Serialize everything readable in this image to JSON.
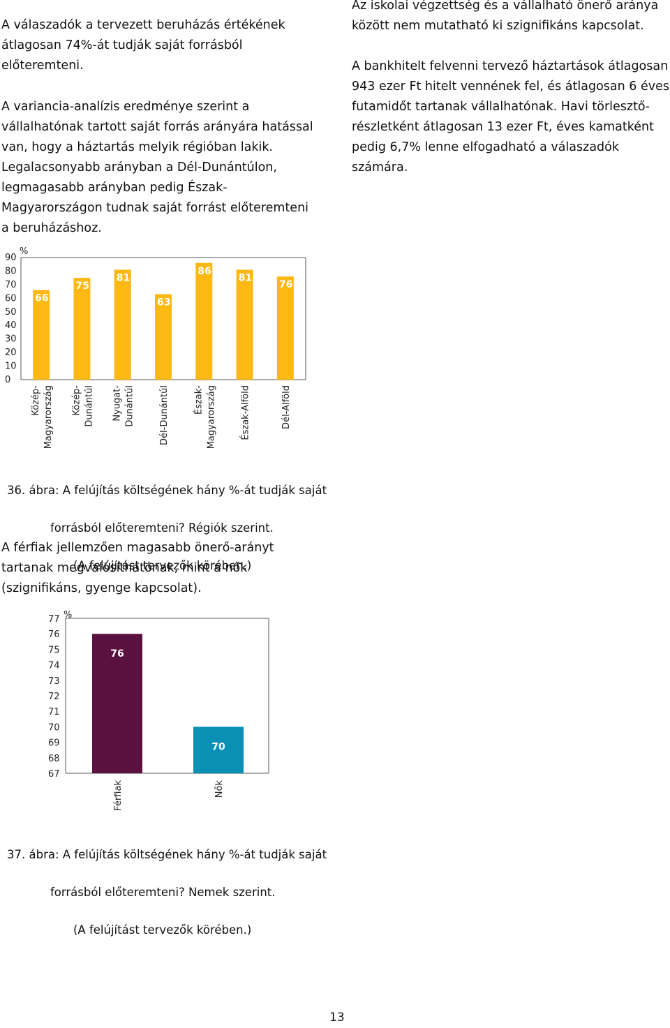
{
  "left_column": {
    "p1": "A válaszadók a tervezett beruházás értékének\nátlagosan 74%-át tudják saját forrásból\nelőteremteni.",
    "p2": "A variancia-analízis eredménye szerint a\nvállalhatónak tartott saját forrás arányára hatással\nvan, hogy a háztartás melyik régióban lakik.\nLegalacsonyabb arányban a Dél-Dunántúlon,\nlegmagasabb arányban pedig Észak-\nMagyarországon tudnak saját forrást előteremteni\na beruházáshoz.",
    "p3": "A férfiak jellemzően magasabb önerő-arányt\ntartanak megvalósíthatónak, mint a nők\n(szignifikáns, gyenge kapcsolat)."
  },
  "right_column": {
    "p1": "Az iskolai végzettség és a vállalható önerő aránya\nközött nem mutatható ki szignifikáns kapcsolat.",
    "p2": "A bankhitelt felvenni tervező háztartások átlagosan\n943 ezer Ft hitelt vennének fel, és átlagosan 6 éves\nfutamidőt tartanak vállalhatónak. Havi törlesztő-\nrészletként átlagosan 13 ezer Ft, éves kamatként\npedig 6,7% lenne elfogadható a válaszadók\nszámára."
  },
  "figure36": {
    "caption_line1": "36. ábra: A felújítás költségének hány %-át tudják saját",
    "caption_line2": "forrásból előteremteni? Régiók szerint.",
    "caption_line3": "(A felújítást tervezők körében.)"
  },
  "figure37": {
    "caption_line1": "37. ábra: A felújítás költségének hány %-át tudják saját",
    "caption_line2": "forrásból előteremteni? Nemek szerint.",
    "caption_line3": "(A felújítást tervezők körében.)"
  },
  "chart_data": [
    {
      "type": "bar",
      "ylabel": "%",
      "ylim": [
        0,
        90
      ],
      "yticks": [
        0,
        10,
        20,
        30,
        40,
        50,
        60,
        70,
        80,
        90
      ],
      "categories": [
        "Közép-\nMagyarország",
        "Közép-\nDunántúl",
        "Nyugat-\nDunántúl",
        "Dél-Dunántúl",
        "Észak-\nMagyarország",
        "Észak-Alföld",
        "Dél-Alföld"
      ],
      "values": [
        66,
        75,
        81,
        63,
        86,
        81,
        76
      ],
      "value_labels": [
        "66",
        "75",
        "81",
        "63",
        "86",
        "81",
        "76"
      ],
      "bar_color": "#FDB813",
      "grid": false
    },
    {
      "type": "bar",
      "ylabel": "%",
      "ylim": [
        67,
        77
      ],
      "yticks": [
        67,
        68,
        69,
        70,
        71,
        72,
        73,
        74,
        75,
        76,
        77
      ],
      "categories": [
        "Férfiak",
        "Nők"
      ],
      "values": [
        76,
        70
      ],
      "value_labels": [
        "76",
        "70"
      ],
      "bar_colors": [
        "#5B1140",
        "#0A8FB5"
      ],
      "grid": false
    }
  ],
  "page_number": "13"
}
